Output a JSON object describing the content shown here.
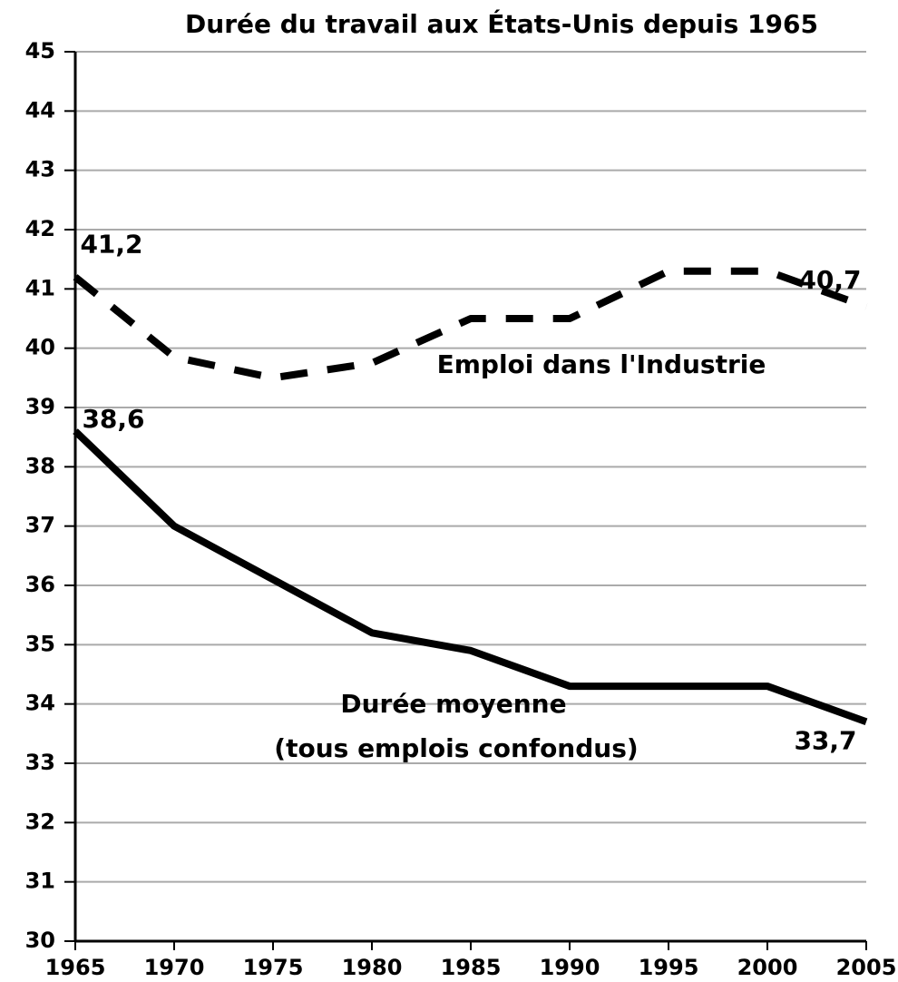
{
  "chart_data": {
    "type": "line",
    "title": "Durée du travail aux États-Unis depuis 1965",
    "x": [
      1965,
      1970,
      1975,
      1980,
      1985,
      1990,
      1995,
      2000,
      2005
    ],
    "series": [
      {
        "name": "Emploi dans l'Industrie",
        "color": "#000000",
        "dash": true,
        "values": [
          41.2,
          39.85,
          39.5,
          39.75,
          40.5,
          40.5,
          41.3,
          41.3,
          40.7
        ],
        "value_labels": [
          "41,2",
          null,
          null,
          null,
          null,
          null,
          null,
          null,
          "40,7"
        ]
      },
      {
        "name": "Durée moyenne",
        "color": "#000000",
        "dash": false,
        "values": [
          38.6,
          37.0,
          36.1,
          35.2,
          34.9,
          34.3,
          34.3,
          34.3,
          33.7
        ],
        "value_labels": [
          "38,6",
          null,
          null,
          null,
          null,
          null,
          null,
          null,
          "33,7"
        ]
      }
    ],
    "annotations": [
      "(tous emplois confondus)"
    ],
    "xlim": [
      1965,
      2005
    ],
    "xticks": [
      1965,
      1970,
      1975,
      1980,
      1985,
      1990,
      1995,
      2000,
      2005
    ],
    "ylim": [
      30,
      45
    ],
    "yticks": [
      30,
      31,
      32,
      33,
      34,
      35,
      36,
      37,
      38,
      39,
      40,
      41,
      42,
      43,
      44,
      45
    ],
    "grid": true
  }
}
